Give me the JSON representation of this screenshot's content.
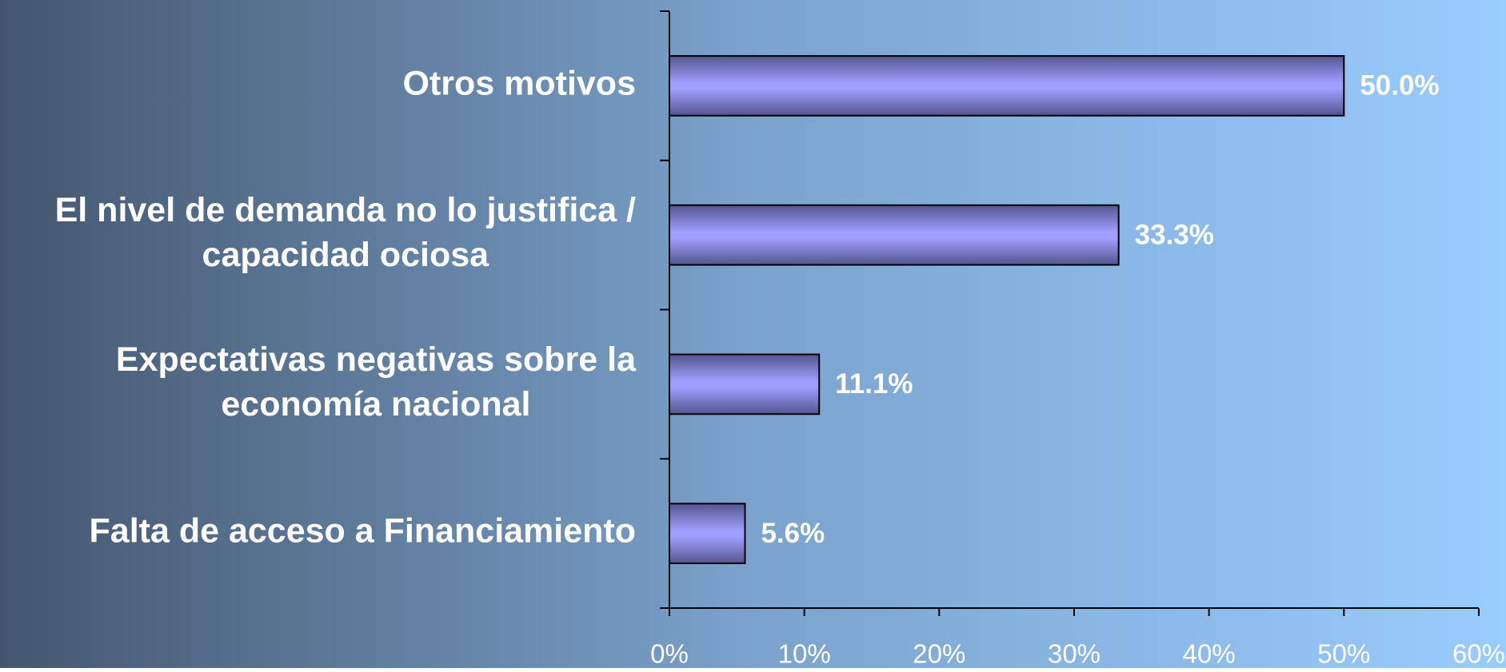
{
  "chart_data": {
    "type": "barh",
    "categories": [
      "Otros motivos",
      "El nivel de demanda no lo justifica / capacidad ociosa",
      "Expectativas negativas sobre la economía nacional",
      "Falta de acceso a Financiamiento"
    ],
    "values": [
      50.0,
      33.3,
      11.1,
      5.6
    ],
    "value_labels": [
      "50.0%",
      "33.3%",
      "11.1%",
      "5.6%"
    ],
    "color": "#9999ff",
    "xlim": [
      0,
      60
    ],
    "xticks": [
      {
        "value": 0,
        "label": "0%"
      },
      {
        "value": 10,
        "label": "10%"
      },
      {
        "value": 20,
        "label": "20%"
      },
      {
        "value": 30,
        "label": "30%"
      },
      {
        "value": 40,
        "label": "40%"
      },
      {
        "value": 50,
        "label": "50%"
      },
      {
        "value": 60,
        "label": "60%"
      }
    ],
    "grid": false
  }
}
